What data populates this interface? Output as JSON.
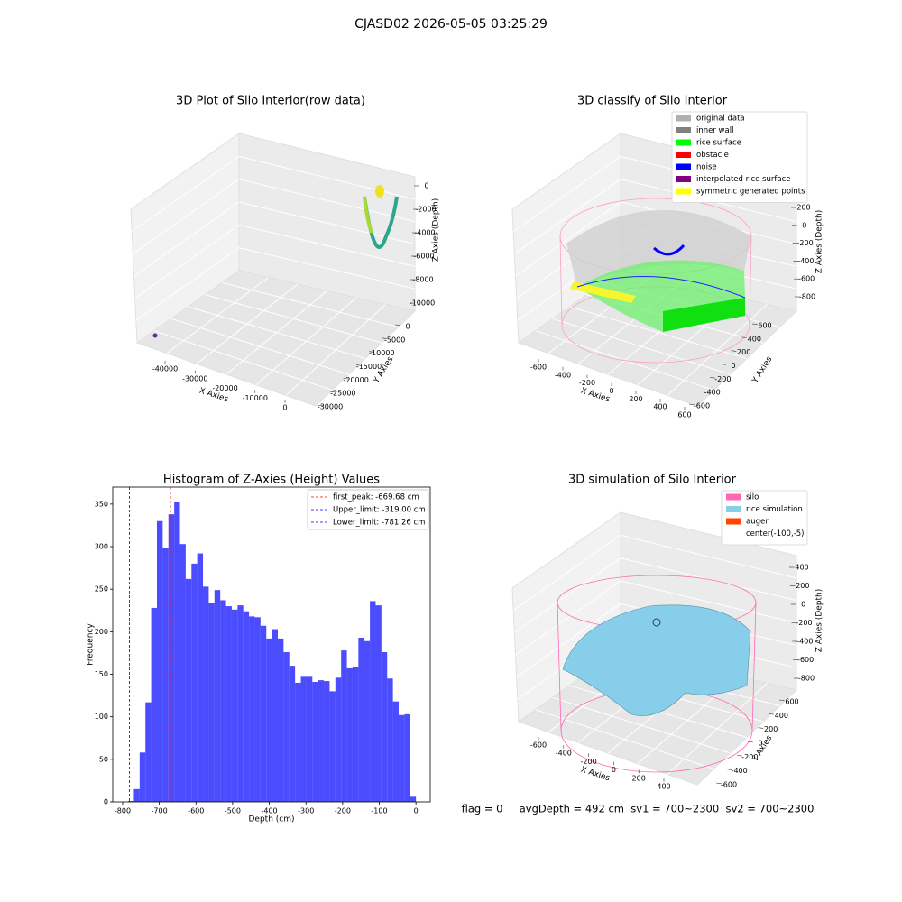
{
  "suptitle": "CJASD02 2026-05-05 03:25:29",
  "status": "flag = 0     avgDepth = 492 cm  sv1 = 700~2300  sv2 = 700~2300",
  "chart_data": [
    {
      "type": "scatter3d",
      "title": "3D Plot of Silo Interior(row data)",
      "xlabel": "X Axies",
      "ylabel": "Y Axies",
      "zlabel": "Z Axies (Depth)",
      "xticks": [
        -40000,
        -30000,
        -20000,
        -10000,
        0
      ],
      "yticks": [
        0,
        -5000,
        -10000,
        -15000,
        -20000,
        -25000,
        -30000
      ],
      "zticks": [
        0,
        -2000,
        -4000,
        -6000,
        -8000,
        -10000
      ]
    },
    {
      "type": "scatter3d",
      "title": "3D classify of Silo Interior",
      "xlabel": "X Axies",
      "ylabel": "Y Axies",
      "zlabel": "Z Axies (Depth)",
      "xticks": [
        -600,
        -400,
        -200,
        0,
        200,
        400,
        600
      ],
      "yticks": [
        -600,
        -400,
        -200,
        0,
        200,
        400,
        600
      ],
      "zticks": [
        -800,
        -600,
        -400,
        -200,
        0,
        200
      ],
      "legend": [
        {
          "name": "original data",
          "color": "#b0b0b0"
        },
        {
          "name": "inner wall",
          "color": "#808080"
        },
        {
          "name": "rice surface",
          "color": "#00ff00"
        },
        {
          "name": "obstacle",
          "color": "#ff0000"
        },
        {
          "name": "noise",
          "color": "#0000ff"
        },
        {
          "name": "interpolated rice surface",
          "color": "#800080"
        },
        {
          "name": "symmetric generated points",
          "color": "#ffff00"
        }
      ]
    },
    {
      "type": "histogram",
      "title": "Histogram of Z-Axies (Height) Values",
      "xlabel": "Depth (cm)",
      "ylabel": "Frequency",
      "color": "#0000ff",
      "bins": [
        -785,
        -769.3,
        -753.6,
        -737.9,
        -722.2,
        -706.5,
        -690.8,
        -675.1,
        -659.4,
        -643.7,
        -628,
        -612.3,
        -596.6,
        -580.9,
        -565.2,
        -549.5,
        -533.8,
        -518.1,
        -502.4,
        -486.7,
        -471,
        -455.3,
        -439.6,
        -423.9,
        -408.2,
        -392.5,
        -376.8,
        -361.1,
        -345.4,
        -329.7,
        -314,
        -298.3,
        -282.6,
        -266.9,
        -251.2,
        -235.5,
        -219.8,
        -204.1,
        -188.4,
        -172.7,
        -157,
        -141.3,
        -125.6,
        -109.9,
        -94.2,
        -78.5,
        -62.8,
        -47.1,
        -31.4,
        -15.7,
        0
      ],
      "counts": [
        1,
        15,
        58,
        117,
        228,
        330,
        298,
        338,
        352,
        303,
        262,
        280,
        292,
        253,
        234,
        249,
        237,
        230,
        226,
        231,
        224,
        218,
        217,
        207,
        192,
        203,
        192,
        176,
        160,
        140,
        147,
        147,
        141,
        143,
        142,
        130,
        146,
        178,
        157,
        158,
        193,
        189,
        236,
        231,
        176,
        145,
        118,
        102,
        103,
        6
      ],
      "xlim": [
        -827,
        39
      ],
      "ylim": [
        0,
        370
      ],
      "xticks": [
        -800,
        -700,
        -600,
        -500,
        -400,
        -300,
        -200,
        -100,
        0
      ],
      "yticks": [
        0,
        50,
        100,
        150,
        200,
        250,
        300,
        350
      ],
      "lines": [
        {
          "label": "first_peak: -669.68 cm",
          "value": -669.68,
          "color": "#ff0000"
        },
        {
          "label": "Upper_limit: -319.00 cm",
          "value": -319.0,
          "color": "#0000ff"
        },
        {
          "label": "Lower_limit: -781.26 cm",
          "value": -781.26,
          "color": "#0000ff"
        }
      ]
    },
    {
      "type": "surface3d",
      "title": "3D simulation of Silo Interior",
      "xlabel": "X Axies",
      "ylabel": "Y Axies",
      "zlabel": "Z Axies (Depth)",
      "xticks": [
        -600,
        -400,
        -200,
        0,
        200,
        400
      ],
      "yticks": [
        -600,
        -400,
        -200,
        0,
        200,
        400,
        600
      ],
      "zticks": [
        -800,
        -600,
        -400,
        -200,
        0,
        200,
        400
      ],
      "legend": [
        {
          "name": "silo",
          "color": "#ff69b4"
        },
        {
          "name": "rice simulation",
          "color": "#87ceeb"
        },
        {
          "name": "auger",
          "color": "#ff4500"
        },
        {
          "name": "center(-100,-5)"
        }
      ]
    }
  ]
}
